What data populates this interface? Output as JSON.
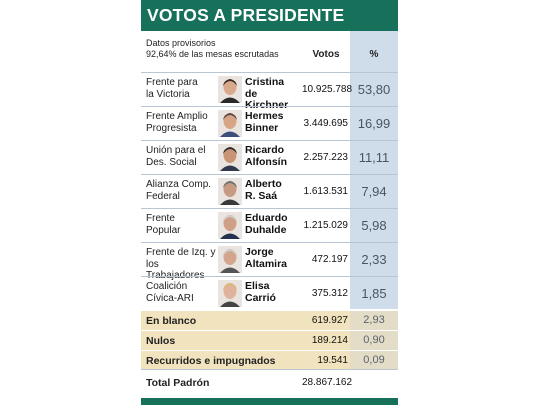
{
  "title": "VOTOS A PRESIDENTE",
  "note_line1": "Datos provisorios",
  "note_line2": "92,64% de las mesas escrutadas",
  "col_votes": "Votos",
  "col_pct": "%",
  "candidates": [
    {
      "party1": "Frente para",
      "party2": "la Victoria",
      "name1": "Cristina",
      "name2": "de Kirchner",
      "votes": "10.925.788",
      "pct": "53,80",
      "hair": "#3a2a20",
      "skin": "#d9a98c",
      "shirt": "#2a2a2a"
    },
    {
      "party1": "Frente Amplio",
      "party2": "Progresista",
      "name1": "Hermes",
      "name2": "Binner",
      "votes": "3.449.695",
      "pct": "16,99",
      "hair": "#5a4a40",
      "skin": "#d8a486",
      "shirt": "#3b4f7a"
    },
    {
      "party1": "Unión para el",
      "party2": "Des. Social",
      "name1": "Ricardo",
      "name2": "Alfonsín",
      "votes": "2.257.223",
      "pct": "11,11",
      "hair": "#2b2b2b",
      "skin": "#c99475",
      "shirt": "#2f3a4e"
    },
    {
      "party1": "Alianza Comp.",
      "party2": "Federal",
      "name1": "Alberto",
      "name2": "R. Saá",
      "votes": "1.613.531",
      "pct": "7,94",
      "hair": "#6e6e6e",
      "skin": "#c79a82",
      "shirt": "#3a3a3a"
    },
    {
      "party1": "Frente",
      "party2": "Popular",
      "name1": "Eduardo",
      "name2": "Duhalde",
      "votes": "1.215.029",
      "pct": "5,98",
      "hair": "#d0cfcf",
      "skin": "#cf9f86",
      "shirt": "#23324f"
    },
    {
      "party1": "Frente de Izq. y",
      "party2": "los Trabajadores",
      "name1": "Jorge",
      "name2": "Altamira",
      "votes": "472.197",
      "pct": "2,33",
      "hair": "#cfcfcf",
      "skin": "#d2a58c",
      "shirt": "#555555"
    },
    {
      "party1": "Coalición",
      "party2": "Cívica-ARI",
      "name1": "Elisa",
      "name2": "Carrió",
      "votes": "375.312",
      "pct": "1,85",
      "hair": "#d9b878",
      "skin": "#e0b29a",
      "shirt": "#444444"
    }
  ],
  "summary": [
    {
      "label": "En blanco",
      "votes": "619.927",
      "pct": "2,93"
    },
    {
      "label": "Nulos",
      "votes": "189.214",
      "pct": "0,90"
    },
    {
      "label": "Recurridos e impugnados",
      "votes": "19.541",
      "pct": "0,09"
    }
  ],
  "total": {
    "label": "Total Padrón",
    "votes": "28.867.162"
  },
  "colors": {
    "title_bg": "#16705a",
    "pct_bg": "#cfddea",
    "summary_bg": "#f1e3bd"
  }
}
